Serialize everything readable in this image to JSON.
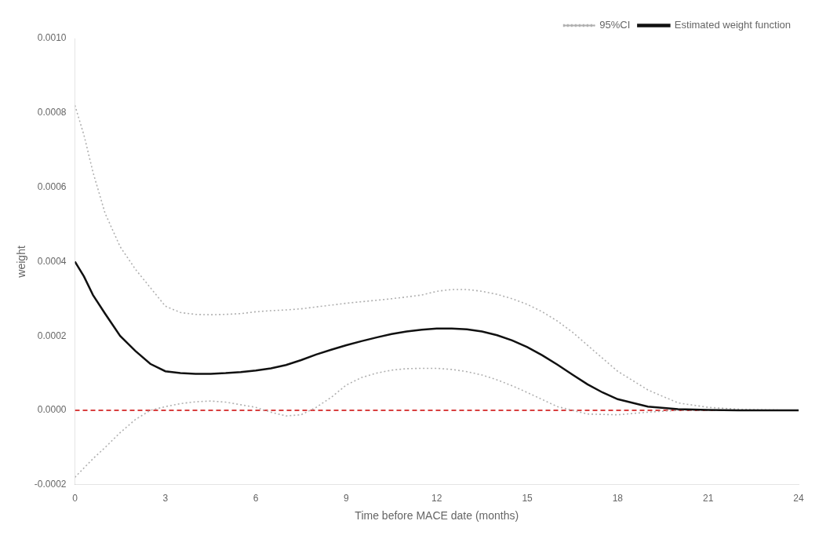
{
  "chart_data": {
    "type": "line",
    "xlabel": "Time before MACE date (months)",
    "ylabel": "weight",
    "xlim": [
      0,
      24
    ],
    "ylim": [
      -0.0002,
      0.001
    ],
    "xticks": [
      0,
      3,
      6,
      9,
      12,
      15,
      18,
      21,
      24
    ],
    "yticks": [
      -0.0002,
      {
        "value": 0,
        "label": "0.0000"
      },
      0.0002,
      0.0004,
      0.0006,
      0.0008,
      {
        "value": 0.001,
        "label": "0.0010"
      }
    ],
    "grid": false,
    "legend": "upper right",
    "hlines": [
      {
        "y": 0,
        "color": "#cc0000",
        "line_style": "dashed"
      }
    ],
    "series": [
      {
        "name": "95%CI",
        "color": "#b0b0b0",
        "line_style": "dotted",
        "x": [
          0,
          0.3,
          0.6,
          1.0,
          1.5,
          2.0,
          2.5,
          3.0,
          3.5,
          4.0,
          4.5,
          5.0,
          5.5,
          6.0,
          6.5,
          7.0,
          7.5,
          8.0,
          8.5,
          9.0,
          9.5,
          10.0,
          10.5,
          11.0,
          11.5,
          12.0,
          12.5,
          13.0,
          13.5,
          14.0,
          14.5,
          15.0,
          15.5,
          16.0,
          16.5,
          17.0,
          17.5,
          18.0,
          19.0,
          20.0,
          21.0,
          22.0,
          23.0,
          24.0
        ],
        "values": [
          0.00082,
          0.00074,
          0.00064,
          0.00053,
          0.00044,
          0.00038,
          0.00033,
          0.00028,
          0.000263,
          0.000258,
          0.000257,
          0.000258,
          0.00026,
          0.000265,
          0.000268,
          0.00027,
          0.000273,
          0.000278,
          0.000283,
          0.000288,
          0.000292,
          0.000296,
          0.0003,
          0.000305,
          0.00031,
          0.00032,
          0.000325,
          0.000325,
          0.00032,
          0.000312,
          0.0003,
          0.000285,
          0.000265,
          0.00024,
          0.00021,
          0.000175,
          0.00014,
          0.000105,
          5.5e-05,
          2e-05,
          8e-06,
          3e-06,
          1e-06,
          0.0
        ]
      },
      {
        "name": "95%CI",
        "color": "#b0b0b0",
        "line_style": "dotted",
        "x": [
          0,
          0.3,
          0.6,
          1.0,
          1.5,
          2.0,
          2.5,
          3.0,
          3.5,
          4.0,
          4.5,
          5.0,
          5.5,
          6.0,
          6.5,
          7.0,
          7.5,
          8.0,
          8.5,
          9.0,
          9.5,
          10.0,
          10.5,
          11.0,
          11.5,
          12.0,
          12.5,
          13.0,
          13.5,
          14.0,
          14.5,
          15.0,
          16.0,
          17.0,
          18.0,
          19.0,
          20.0,
          21.0,
          22.0,
          23.0,
          24.0
        ],
        "values": [
          -0.00018,
          -0.000155,
          -0.00013,
          -0.0001,
          -6e-05,
          -2.5e-05,
          0.0,
          1e-05,
          1.8e-05,
          2.3e-05,
          2.5e-05,
          2.2e-05,
          1.5e-05,
          8e-06,
          -5e-06,
          -1.5e-05,
          -1.2e-05,
          8e-06,
          3.5e-05,
          6.8e-05,
          8.8e-05,
          0.0001,
          0.000108,
          0.000112,
          0.000113,
          0.000113,
          0.00011,
          0.000104,
          9.5e-05,
          8.2e-05,
          6.6e-05,
          4.8e-05,
          1e-05,
          -1e-05,
          -1.2e-05,
          -5e-06,
          0.0,
          0.0,
          0.0,
          0.0,
          0.0
        ]
      },
      {
        "name": "Estimated weight function",
        "color": "#111111",
        "line_style": "solid",
        "x": [
          0,
          0.3,
          0.6,
          1.0,
          1.5,
          2.0,
          2.5,
          3.0,
          3.5,
          4.0,
          4.5,
          5.0,
          5.5,
          6.0,
          6.5,
          7.0,
          7.5,
          8.0,
          8.5,
          9.0,
          9.5,
          10.0,
          10.5,
          11.0,
          11.5,
          12.0,
          12.5,
          13.0,
          13.5,
          14.0,
          14.5,
          15.0,
          15.5,
          16.0,
          16.5,
          17.0,
          17.5,
          18.0,
          19.0,
          20.0,
          21.0,
          22.0,
          23.0,
          24.0
        ],
        "values": [
          0.0004,
          0.00036,
          0.00031,
          0.00026,
          0.0002,
          0.00016,
          0.000125,
          0.000105,
          0.0001,
          9.8e-05,
          9.8e-05,
          0.0001,
          0.000103,
          0.000107,
          0.000113,
          0.000122,
          0.000135,
          0.00015,
          0.000163,
          0.000175,
          0.000186,
          0.000196,
          0.000205,
          0.000212,
          0.000217,
          0.00022,
          0.00022,
          0.000218,
          0.000212,
          0.000202,
          0.000188,
          0.00017,
          0.000148,
          0.000123,
          9.6e-05,
          7e-05,
          4.8e-05,
          3e-05,
          1e-05,
          3e-06,
          1e-06,
          2e-07,
          1e-07,
          0.0
        ]
      }
    ]
  }
}
